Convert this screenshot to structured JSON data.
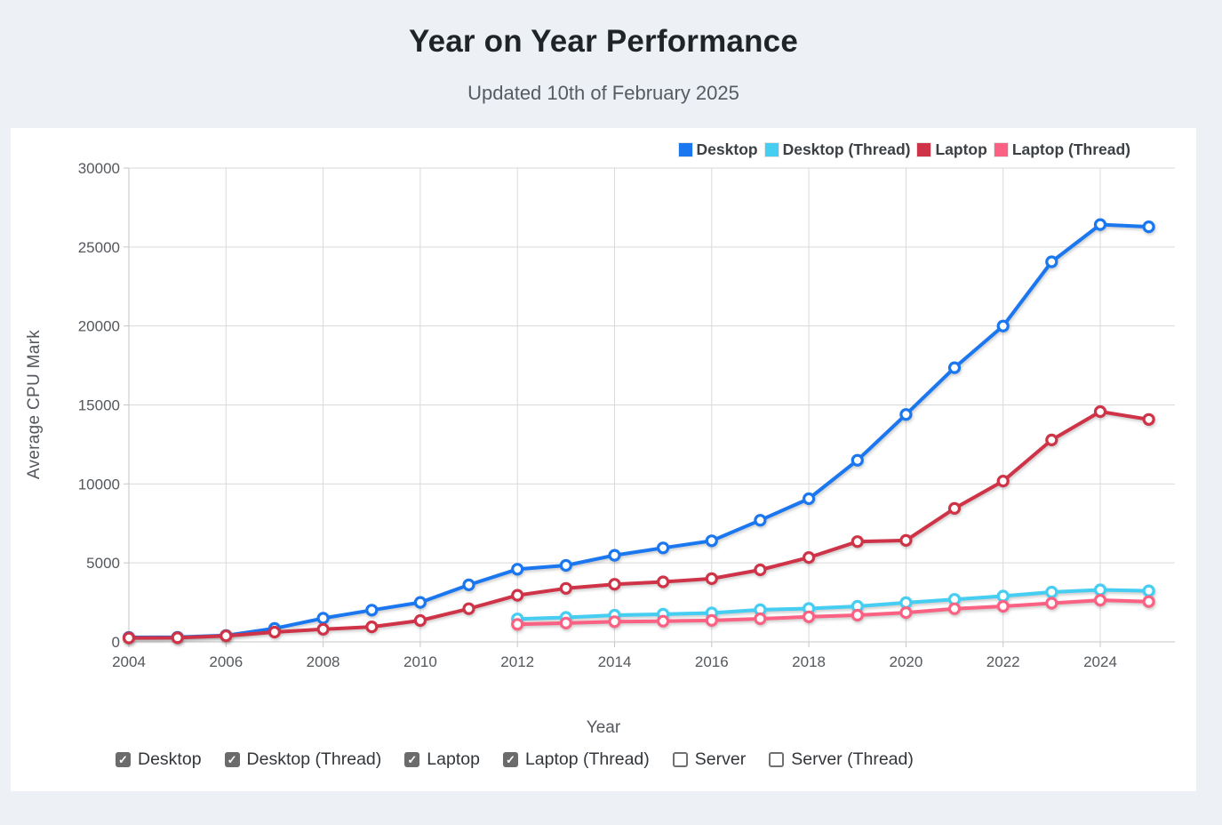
{
  "header": {
    "title": "Year on Year Performance",
    "subtitle": "Updated 10th of February 2025"
  },
  "colors": {
    "background": "#edf1f5",
    "card": "#ffffff",
    "gridline": "#d9d9d9",
    "desktop": "#1a77f0",
    "desktop_thread": "#45cdf2",
    "laptop": "#cf3347",
    "laptop_thread": "#fa6183",
    "checkbox_checked": "#6b6b6b"
  },
  "chart_data": {
    "type": "line",
    "title": "Year on Year Performance",
    "xlabel": "Year",
    "ylabel": "Average CPU Mark",
    "ylim": [
      0,
      30000
    ],
    "y_ticks": [
      0,
      5000,
      10000,
      15000,
      20000,
      25000,
      30000
    ],
    "x_ticks": [
      2004,
      2006,
      2008,
      2010,
      2012,
      2014,
      2016,
      2018,
      2020,
      2022,
      2024
    ],
    "x_range": [
      2004,
      2025
    ],
    "grid": true,
    "legend_position": "top-right",
    "marker": "open-circle",
    "series": [
      {
        "name": "Desktop",
        "color": "#1a77f0",
        "x": [
          2004,
          2005,
          2006,
          2007,
          2008,
          2009,
          2010,
          2011,
          2012,
          2013,
          2014,
          2015,
          2016,
          2017,
          2018,
          2019,
          2020,
          2021,
          2022,
          2023,
          2024,
          2025
        ],
        "values": [
          280,
          295,
          405,
          850,
          1500,
          2010,
          2500,
          3610,
          4600,
          4840,
          5480,
          5950,
          6400,
          7700,
          9060,
          11500,
          14400,
          17360,
          20000,
          24060,
          26420,
          26280
        ]
      },
      {
        "name": "Desktop (Thread)",
        "color": "#45cdf2",
        "x": [
          2012,
          2013,
          2014,
          2015,
          2016,
          2017,
          2018,
          2019,
          2020,
          2021,
          2022,
          2023,
          2024,
          2025
        ],
        "values": [
          1450,
          1550,
          1690,
          1750,
          1830,
          2030,
          2110,
          2250,
          2480,
          2690,
          2900,
          3150,
          3290,
          3230
        ]
      },
      {
        "name": "Laptop",
        "color": "#cf3347",
        "x": [
          2004,
          2005,
          2006,
          2007,
          2008,
          2009,
          2010,
          2011,
          2012,
          2013,
          2014,
          2015,
          2016,
          2017,
          2018,
          2019,
          2020,
          2021,
          2022,
          2023,
          2024,
          2025
        ],
        "values": [
          245,
          260,
          380,
          620,
          800,
          950,
          1350,
          2100,
          2950,
          3390,
          3650,
          3800,
          4000,
          4560,
          5340,
          6350,
          6420,
          8450,
          10180,
          12780,
          14580,
          14080
        ]
      },
      {
        "name": "Laptop (Thread)",
        "color": "#fa6183",
        "x": [
          2012,
          2013,
          2014,
          2015,
          2016,
          2017,
          2018,
          2019,
          2020,
          2021,
          2022,
          2023,
          2024,
          2025
        ],
        "values": [
          1110,
          1185,
          1280,
          1310,
          1355,
          1465,
          1590,
          1690,
          1850,
          2100,
          2250,
          2450,
          2640,
          2550
        ]
      }
    ]
  },
  "filters": {
    "items": [
      {
        "label": "Desktop",
        "checked": true
      },
      {
        "label": "Desktop (Thread)",
        "checked": true
      },
      {
        "label": "Laptop",
        "checked": true
      },
      {
        "label": "Laptop (Thread)",
        "checked": true
      },
      {
        "label": "Server",
        "checked": false
      },
      {
        "label": "Server (Thread)",
        "checked": false
      }
    ]
  }
}
